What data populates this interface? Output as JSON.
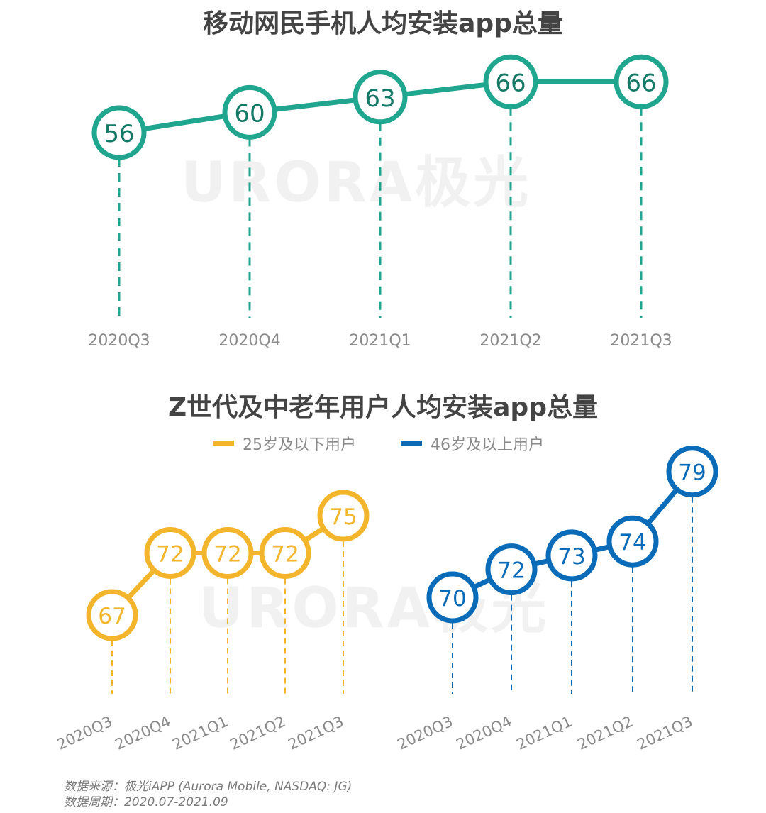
{
  "watermark": "URORA极光",
  "chart_data": [
    {
      "type": "line",
      "title": "移动网民手机人均安装app总量",
      "categories": [
        "2020Q3",
        "2020Q4",
        "2021Q1",
        "2021Q2",
        "2021Q3"
      ],
      "series": [
        {
          "values": [
            56,
            60,
            63,
            66,
            66
          ],
          "color": "#20a58e"
        }
      ],
      "data_labels": true,
      "grid": false
    },
    {
      "type": "line",
      "title": "Z世代及中老年用户人均安装app总量",
      "categories": [
        "2020Q3",
        "2020Q4",
        "2021Q1",
        "2021Q2",
        "2021Q3"
      ],
      "legend_position": "top-center",
      "series": [
        {
          "name": "25岁及以下用户",
          "values": [
            67,
            72,
            72,
            72,
            75
          ],
          "color": "#f3b52b"
        },
        {
          "name": "46岁及以上用户",
          "values": [
            70,
            72,
            73,
            74,
            79
          ],
          "color": "#0a6bb8"
        }
      ],
      "data_labels": true,
      "grid": false
    }
  ],
  "source": {
    "line1": "数据来源：极光iAPP (Aurora Mobile, NASDAQ: JG)",
    "line2": "数据周期：2020.07-2021.09"
  }
}
